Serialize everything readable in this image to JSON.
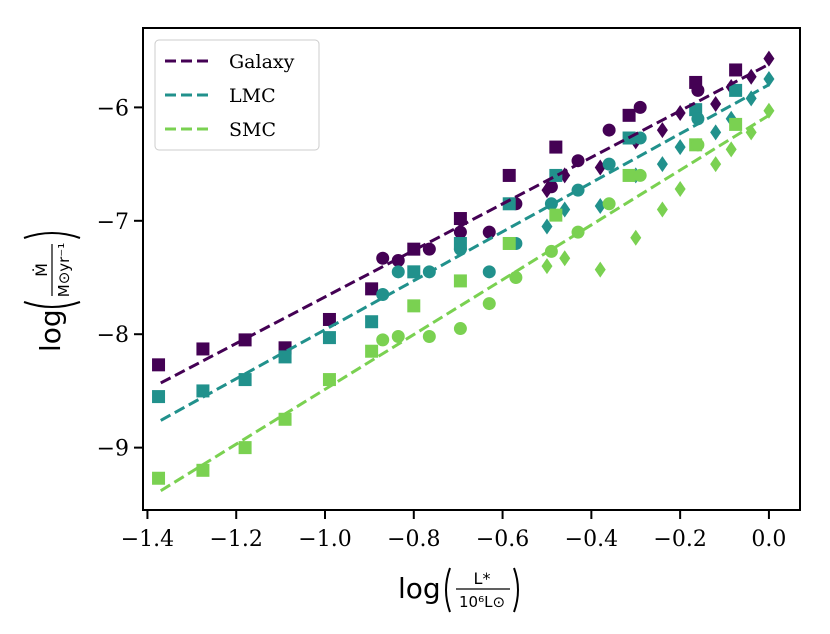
{
  "chart_data": {
    "type": "scatter",
    "xlabel": "log(L* / 10^6 L⊙)",
    "ylabel": "log(Ṁ / M⊙ yr⁻¹)",
    "xlim": [
      -1.41,
      0.07
    ],
    "ylim": [
      -9.55,
      -5.3
    ],
    "x_ticks": [
      -1.4,
      -1.2,
      -1.0,
      -0.8,
      -0.6,
      -0.4,
      -0.2,
      0.0
    ],
    "x_tick_labels": [
      "−1.4",
      "−1.2",
      "−1.0",
      "−0.8",
      "−0.6",
      "−0.4",
      "−0.2",
      "0.0"
    ],
    "y_ticks": [
      -9,
      -8,
      -7,
      -6
    ],
    "y_tick_labels": [
      "−9",
      "−8",
      "−7",
      "−6"
    ],
    "grid": false,
    "legend_position": "top-left",
    "series": [
      {
        "name": "Galaxy",
        "color": "#440154",
        "fit": {
          "x": [
            -1.37,
            0.0
          ],
          "y": [
            -8.43,
            -5.62
          ]
        },
        "squares": [
          [
            -1.375,
            -8.27
          ],
          [
            -1.275,
            -8.13
          ],
          [
            -1.18,
            -8.05
          ],
          [
            -1.09,
            -8.12
          ],
          [
            -0.99,
            -7.87
          ],
          [
            -0.895,
            -7.6
          ],
          [
            -0.8,
            -7.25
          ],
          [
            -0.695,
            -6.98
          ],
          [
            -0.585,
            -6.6
          ],
          [
            -0.48,
            -6.35
          ],
          [
            -0.315,
            -6.07
          ],
          [
            -0.165,
            -5.78
          ],
          [
            -0.075,
            -5.67
          ]
        ],
        "circles": [
          [
            -0.87,
            -7.33
          ],
          [
            -0.835,
            -7.35
          ],
          [
            -0.765,
            -7.25
          ],
          [
            -0.695,
            -7.1
          ],
          [
            -0.63,
            -7.1
          ],
          [
            -0.57,
            -6.85
          ],
          [
            -0.49,
            -6.7
          ],
          [
            -0.43,
            -6.47
          ],
          [
            -0.36,
            -6.2
          ],
          [
            -0.29,
            -6.0
          ],
          [
            -0.16,
            -5.85
          ]
        ],
        "diamonds": [
          [
            -0.5,
            -6.73
          ],
          [
            -0.46,
            -6.6
          ],
          [
            -0.38,
            -6.53
          ],
          [
            -0.3,
            -6.3
          ],
          [
            -0.24,
            -6.2
          ],
          [
            -0.2,
            -6.05
          ],
          [
            -0.12,
            -5.97
          ],
          [
            -0.085,
            -5.82
          ],
          [
            -0.04,
            -5.73
          ],
          [
            0.0,
            -5.57
          ]
        ]
      },
      {
        "name": "LMC",
        "color": "#21918c",
        "fit": {
          "x": [
            -1.37,
            0.0
          ],
          "y": [
            -8.76,
            -5.8
          ]
        },
        "squares": [
          [
            -1.375,
            -8.55
          ],
          [
            -1.275,
            -8.5
          ],
          [
            -1.18,
            -8.4
          ],
          [
            -1.09,
            -8.2
          ],
          [
            -0.99,
            -8.03
          ],
          [
            -0.895,
            -7.89
          ],
          [
            -0.8,
            -7.45
          ],
          [
            -0.695,
            -7.2
          ],
          [
            -0.585,
            -6.85
          ],
          [
            -0.48,
            -6.6
          ],
          [
            -0.315,
            -6.27
          ],
          [
            -0.165,
            -6.02
          ],
          [
            -0.075,
            -5.85
          ]
        ],
        "circles": [
          [
            -0.87,
            -7.65
          ],
          [
            -0.835,
            -7.45
          ],
          [
            -0.765,
            -7.45
          ],
          [
            -0.695,
            -7.25
          ],
          [
            -0.63,
            -7.45
          ],
          [
            -0.57,
            -7.2
          ],
          [
            -0.49,
            -6.85
          ],
          [
            -0.43,
            -6.73
          ],
          [
            -0.36,
            -6.5
          ],
          [
            -0.29,
            -6.27
          ],
          [
            -0.16,
            -6.1
          ]
        ],
        "diamonds": [
          [
            -0.5,
            -7.05
          ],
          [
            -0.46,
            -6.9
          ],
          [
            -0.38,
            -6.87
          ],
          [
            -0.3,
            -6.6
          ],
          [
            -0.24,
            -6.5
          ],
          [
            -0.2,
            -6.35
          ],
          [
            -0.12,
            -6.22
          ],
          [
            -0.085,
            -6.1
          ],
          [
            -0.04,
            -5.92
          ],
          [
            0.0,
            -5.75
          ]
        ]
      },
      {
        "name": "SMC",
        "color": "#7ad151",
        "fit": {
          "x": [
            -1.37,
            0.0
          ],
          "y": [
            -9.38,
            -6.07
          ]
        },
        "squares": [
          [
            -1.375,
            -9.27
          ],
          [
            -1.275,
            -9.2
          ],
          [
            -1.18,
            -9.0
          ],
          [
            -1.09,
            -8.75
          ],
          [
            -0.99,
            -8.4
          ],
          [
            -0.895,
            -8.15
          ],
          [
            -0.8,
            -7.75
          ],
          [
            -0.695,
            -7.53
          ],
          [
            -0.585,
            -7.2
          ],
          [
            -0.48,
            -6.95
          ],
          [
            -0.315,
            -6.6
          ],
          [
            -0.165,
            -6.33
          ],
          [
            -0.075,
            -6.15
          ]
        ],
        "circles": [
          [
            -0.87,
            -8.05
          ],
          [
            -0.835,
            -8.02
          ],
          [
            -0.765,
            -8.02
          ],
          [
            -0.695,
            -7.95
          ],
          [
            -0.63,
            -7.73
          ],
          [
            -0.57,
            -7.5
          ],
          [
            -0.49,
            -7.27
          ],
          [
            -0.43,
            -7.1
          ],
          [
            -0.36,
            -6.85
          ],
          [
            -0.29,
            -6.6
          ],
          [
            -0.16,
            -6.33
          ]
        ],
        "diamonds": [
          [
            -0.5,
            -7.4
          ],
          [
            -0.46,
            -7.33
          ],
          [
            -0.38,
            -7.43
          ],
          [
            -0.3,
            -7.15
          ],
          [
            -0.24,
            -6.9
          ],
          [
            -0.2,
            -6.72
          ],
          [
            -0.12,
            -6.5
          ],
          [
            -0.085,
            -6.37
          ],
          [
            -0.04,
            -6.22
          ],
          [
            0.0,
            -6.03
          ]
        ]
      }
    ]
  }
}
